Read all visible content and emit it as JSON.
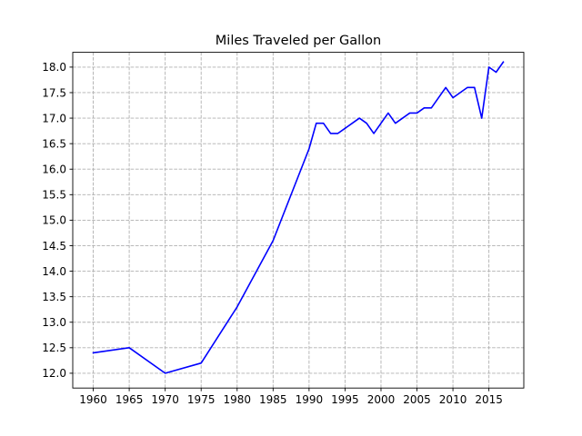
{
  "chart_data": {
    "type": "line",
    "title": "Miles Traveled per Gallon",
    "xlabel": "",
    "ylabel": "",
    "xlim": [
      1957.15,
      2019.85
    ],
    "ylim": [
      11.71,
      18.29
    ],
    "grid": true,
    "xticks": [
      1960,
      1965,
      1970,
      1975,
      1980,
      1985,
      1990,
      1995,
      2000,
      2005,
      2010,
      2015
    ],
    "yticks": [
      12.0,
      12.5,
      13.0,
      13.5,
      14.0,
      14.5,
      15.0,
      15.5,
      16.0,
      16.5,
      17.0,
      17.5,
      18.0
    ],
    "xtick_labels": [
      "1960",
      "1965",
      "1970",
      "1975",
      "1980",
      "1985",
      "1990",
      "1995",
      "2000",
      "2005",
      "2010",
      "2015"
    ],
    "ytick_labels": [
      "12.0",
      "12.5",
      "13.0",
      "13.5",
      "14.0",
      "14.5",
      "15.0",
      "15.5",
      "16.0",
      "16.5",
      "17.0",
      "17.5",
      "18.0"
    ],
    "series": [
      {
        "color": "#0000ff",
        "x": [
          1960,
          1965,
          1970,
          1975,
          1980,
          1985,
          1990,
          1991,
          1992,
          1993,
          1994,
          1995,
          1996,
          1997,
          1998,
          1999,
          2000,
          2001,
          2002,
          2003,
          2004,
          2005,
          2006,
          2007,
          2008,
          2009,
          2010,
          2011,
          2012,
          2013,
          2014,
          2015,
          2016,
          2017
        ],
        "y": [
          12.4,
          12.5,
          12.0,
          12.2,
          13.3,
          14.6,
          16.4,
          16.9,
          16.9,
          16.7,
          16.7,
          16.8,
          16.9,
          17.0,
          16.9,
          16.7,
          16.9,
          17.1,
          16.9,
          17.0,
          17.1,
          17.1,
          17.2,
          17.2,
          17.4,
          17.6,
          17.4,
          17.5,
          17.6,
          17.6,
          17.0,
          18.0,
          17.9,
          18.1
        ]
      }
    ]
  }
}
